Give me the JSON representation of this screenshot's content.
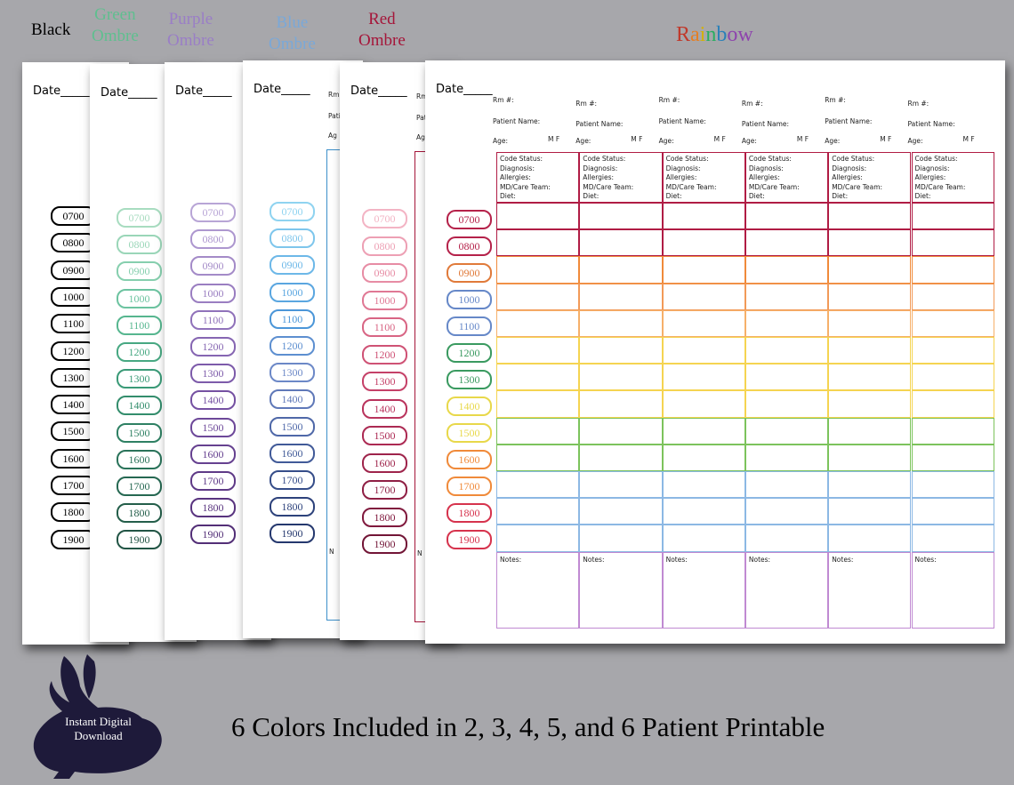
{
  "labels": {
    "black": "Black",
    "green_1": "Green",
    "green_2": "Ombre",
    "purple_1": "Purple",
    "purple_2": "Ombre",
    "blue_1": "Blue",
    "blue_2": "Ombre",
    "red_1": "Red",
    "red_2": "Ombre",
    "rainbow": "Rainbow"
  },
  "rainbow_letters": [
    "R",
    "a",
    "i",
    "n",
    "b",
    "o",
    "w"
  ],
  "rainbow_colors": [
    "#c0392b",
    "#e67e22",
    "#d4b106",
    "#27ae60",
    "#2980b9",
    "#8e44ad",
    "#8e44ad"
  ],
  "date_label": "Date_____",
  "times": [
    "0700",
    "0800",
    "0900",
    "1000",
    "1100",
    "1200",
    "1300",
    "1400",
    "1500",
    "1600",
    "1700",
    "1800",
    "1900"
  ],
  "patient_header": {
    "room": "Rm #:",
    "name": "Patient Name:",
    "age": "Age:",
    "sex": "M   F"
  },
  "info_lines": [
    "Code Status:",
    "Diagnosis:",
    "Allergies:",
    "MD/Care Team:",
    "Diet:"
  ],
  "notes_label": "Notes:",
  "partial_letters": {
    "rm": "Rm",
    "pat": "Pati",
    "age": "Ag",
    "notes": "N"
  },
  "palettes": {
    "black": [
      "#000000"
    ],
    "green": [
      "#a8dcc0",
      "#9ad6b8",
      "#86cfae",
      "#6cc3a0",
      "#56b68f",
      "#47a882",
      "#3a9a77",
      "#338d6c",
      "#2e8063",
      "#2a735a",
      "#266852",
      "#245e4a",
      "#225545"
    ],
    "purple": [
      "#b8a5d6",
      "#ad97cf",
      "#a48bc8",
      "#9a7ec1",
      "#9072ba",
      "#8666b2",
      "#7d5baa",
      "#7551a2",
      "#6d4899",
      "#664190",
      "#5f3a87",
      "#59347f",
      "#532f77"
    ],
    "blue": [
      "#8fd3f0",
      "#7ec6ec",
      "#6db8e8",
      "#5aa6e0",
      "#4b96d8",
      "#5d8fd0",
      "#6c88c7",
      "#5f78b8",
      "#4f68a8",
      "#415a98",
      "#364d89",
      "#2d427b",
      "#25386e"
    ],
    "red": [
      "#f3b4c4",
      "#eda0b4",
      "#e78ca4",
      "#e07894",
      "#d86584",
      "#cf5275",
      "#c54168",
      "#b9335c",
      "#ac2a53",
      "#9e244b",
      "#8f1f44",
      "#80193d",
      "#721536"
    ],
    "rainbow": [
      "#b5224a",
      "#b5224a",
      "#e07a3a",
      "#6688c8",
      "#6688c8",
      "#3a9a60",
      "#3a9a60",
      "#e8d84a",
      "#e8d84a",
      "#f08a3a",
      "#f08a3a",
      "#d6334d",
      "#d6334d"
    ]
  },
  "rainbow_rows": [
    "#b01c44",
    "#b01c44",
    "#f08a3a",
    "#f29a58",
    "#f6b06a",
    "#f5d451",
    "#f5d451",
    "#f5d451",
    "#7cc35c",
    "#7cc35c",
    "#8cb8e4",
    "#8cb8e4",
    "#8cb8e4"
  ],
  "notes_color": "#c08ad2",
  "caption": "6 Colors Included in 2, 3, 4, 5, and 6 Patient Printable",
  "download_label": "Instant Digital Download"
}
